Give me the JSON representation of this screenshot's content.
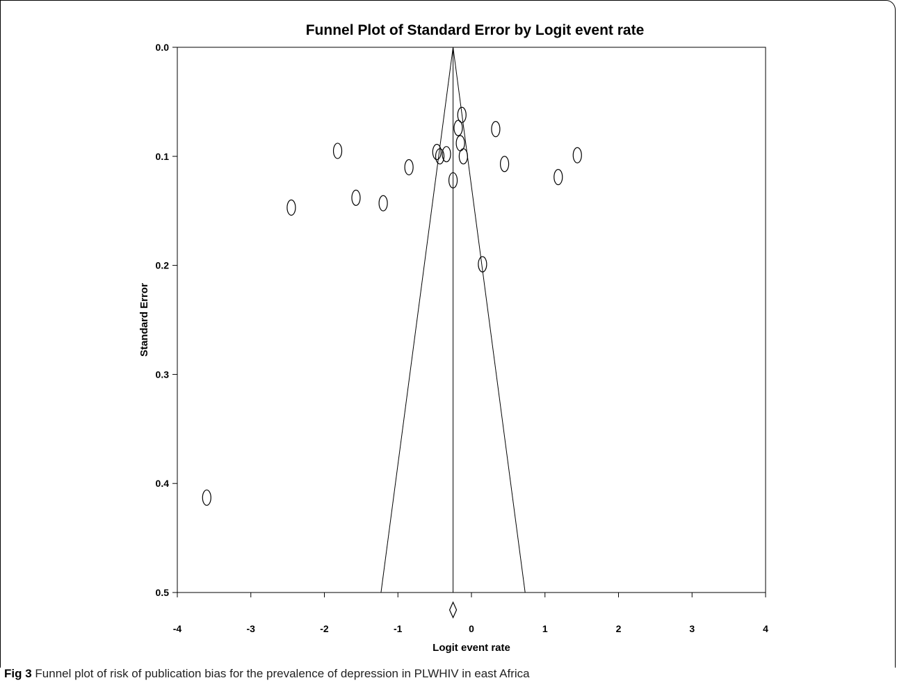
{
  "figure": {
    "caption_label": "Fig 3",
    "caption_text": "Funnel plot of risk of publication bias for the prevalence of depression in PLWHIV in east Africa"
  },
  "chart_data": {
    "type": "scatter",
    "title": "Funnel Plot of Standard Error by Logit event rate",
    "xlabel": "Logit event rate",
    "ylabel": "Standard Error",
    "xlim": [
      -4,
      4
    ],
    "ylim": [
      0.0,
      0.5
    ],
    "y_inverted": true,
    "x_ticks": [
      -4,
      -3,
      -2,
      -1,
      0,
      1,
      2,
      3,
      4
    ],
    "y_ticks": [
      0.0,
      0.1,
      0.2,
      0.3,
      0.4,
      0.5
    ],
    "x_tick_labels": [
      "-4",
      "-3",
      "-2",
      "-1",
      "0",
      "1",
      "2",
      "3",
      "4"
    ],
    "y_tick_labels": [
      "0.0",
      "0.1",
      "0.2",
      "0.3",
      "0.4",
      "0.5"
    ],
    "grid": false,
    "marker": "open-ellipse",
    "pooled_estimate": -0.25,
    "funnel_limits_at_se_0_5": [
      -1.23,
      0.73
    ],
    "summary_marker": "diamond",
    "points": [
      {
        "x": -3.6,
        "y": 0.413
      },
      {
        "x": -2.45,
        "y": 0.147
      },
      {
        "x": -1.82,
        "y": 0.095
      },
      {
        "x": -1.57,
        "y": 0.138
      },
      {
        "x": -1.2,
        "y": 0.143
      },
      {
        "x": -0.85,
        "y": 0.11
      },
      {
        "x": -0.47,
        "y": 0.096
      },
      {
        "x": -0.43,
        "y": 0.1
      },
      {
        "x": -0.34,
        "y": 0.098
      },
      {
        "x": -0.25,
        "y": 0.122
      },
      {
        "x": -0.18,
        "y": 0.074
      },
      {
        "x": -0.15,
        "y": 0.088
      },
      {
        "x": -0.13,
        "y": 0.062
      },
      {
        "x": -0.11,
        "y": 0.1
      },
      {
        "x": 0.15,
        "y": 0.199
      },
      {
        "x": 0.33,
        "y": 0.075
      },
      {
        "x": 0.45,
        "y": 0.107
      },
      {
        "x": 1.18,
        "y": 0.119
      },
      {
        "x": 1.44,
        "y": 0.099
      }
    ]
  }
}
